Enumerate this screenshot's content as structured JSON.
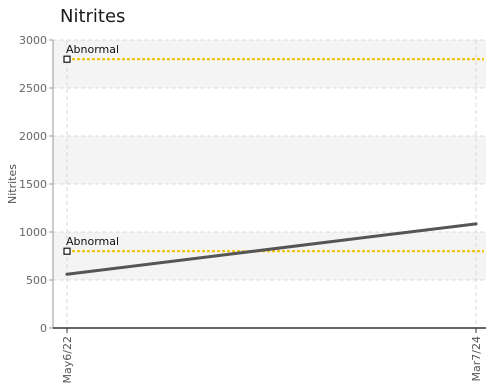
{
  "chart_data": {
    "type": "line",
    "title": "Nitrites",
    "ylabel": "Nitrites",
    "xlabel": "",
    "ylim": [
      0,
      3000
    ],
    "yticks": [
      0,
      500,
      1000,
      1500,
      2000,
      2500,
      3000
    ],
    "grid": true,
    "x_categories": [
      "May6/22",
      "Mar7/24"
    ],
    "series": [
      {
        "x": [
          "May6/22",
          "Mar7/24"
        ],
        "values": [
          560,
          1085
        ]
      }
    ],
    "thresholds": [
      {
        "label": "Abnormal",
        "value": 2800
      },
      {
        "label": "Abnormal",
        "value": 800
      }
    ],
    "colors": {
      "series": "#555555",
      "threshold": "#f2c200",
      "band": "#f4f4f4"
    }
  }
}
